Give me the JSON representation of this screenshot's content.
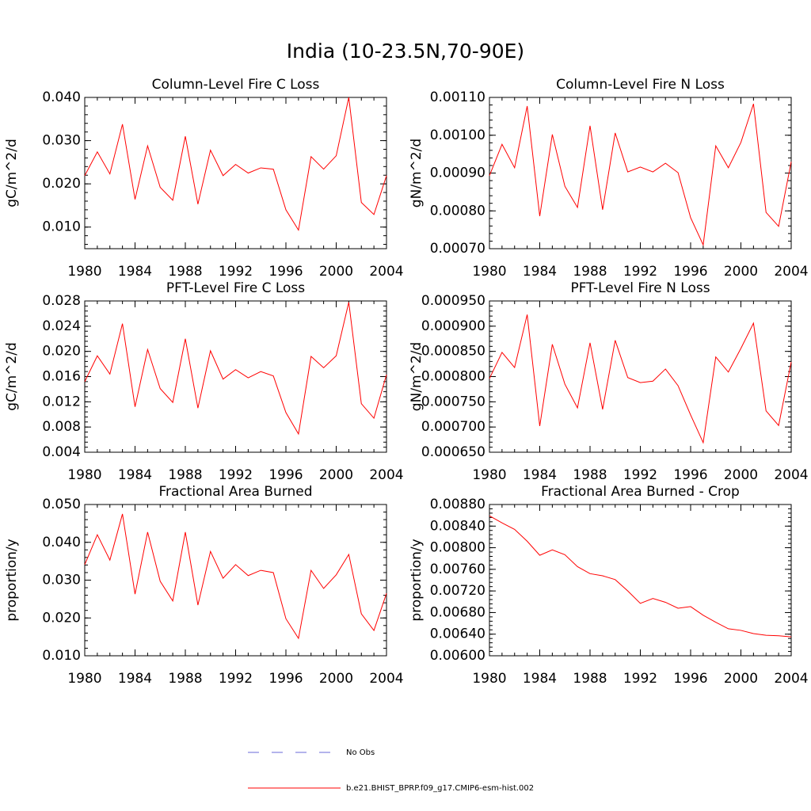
{
  "title": "India (10-23.5N,70-90E)",
  "legend": [
    {
      "name": "No Obs",
      "color": "#6a6ad8",
      "dash": true
    },
    {
      "name": "b.e21.BHIST_BPRP.f09_g17.CMIP6-esm-hist.002",
      "color": "#ff0000",
      "dash": false
    }
  ],
  "chart_data": [
    {
      "type": "line",
      "title": "Column-Level Fire C Loss",
      "ylabel": "gC/m^2/d",
      "color": "#ff0000",
      "x": [
        1980,
        1981,
        1982,
        1983,
        1984,
        1985,
        1986,
        1987,
        1988,
        1989,
        1990,
        1991,
        1992,
        1993,
        1994,
        1995,
        1996,
        1997,
        1998,
        1999,
        2000,
        2001,
        2002,
        2003,
        2004
      ],
      "values": [
        0.0219,
        0.0274,
        0.0223,
        0.0338,
        0.0164,
        0.0288,
        0.0192,
        0.0162,
        0.031,
        0.0153,
        0.0278,
        0.0219,
        0.0245,
        0.0225,
        0.0237,
        0.0234,
        0.014,
        0.0093,
        0.0263,
        0.0234,
        0.0265,
        0.04,
        0.0157,
        0.0129,
        0.0219
      ],
      "xlim": [
        1980,
        2004
      ],
      "xticks": [
        1980,
        1984,
        1988,
        1992,
        1996,
        2000,
        2004
      ],
      "ylim": [
        0.005,
        0.04
      ],
      "yticks": [
        {
          "value": 0.01,
          "label": "0.010"
        },
        {
          "value": 0.02,
          "label": "0.020"
        },
        {
          "value": 0.03,
          "label": "0.030"
        },
        {
          "value": 0.04,
          "label": "0.040"
        }
      ]
    },
    {
      "type": "line",
      "title": "Column-Level Fire N Loss",
      "ylabel": "gN/m^2/d",
      "color": "#ff0000",
      "x": [
        1980,
        1981,
        1982,
        1983,
        1984,
        1985,
        1986,
        1987,
        1988,
        1989,
        1990,
        1991,
        1992,
        1993,
        1994,
        1995,
        1996,
        1997,
        1998,
        1999,
        2000,
        2001,
        2002,
        2003,
        2004
      ],
      "values": [
        0.000893,
        0.000976,
        0.000914,
        0.001077,
        0.000786,
        0.001002,
        0.000865,
        0.000809,
        0.001025,
        0.000803,
        0.001006,
        0.000903,
        0.000916,
        0.000903,
        0.000926,
        0.000901,
        0.000782,
        0.00071,
        0.000972,
        0.000914,
        0.000981,
        0.001083,
        0.000796,
        0.000759,
        0.00093
      ],
      "xlim": [
        1980,
        2004
      ],
      "xticks": [
        1980,
        1984,
        1988,
        1992,
        1996,
        2000,
        2004
      ],
      "ylim": [
        0.0007,
        0.0011
      ],
      "yticks": [
        {
          "value": 0.0007,
          "label": "0.00070"
        },
        {
          "value": 0.0008,
          "label": "0.00080"
        },
        {
          "value": 0.0009,
          "label": "0.00090"
        },
        {
          "value": 0.001,
          "label": "0.00100"
        },
        {
          "value": 0.0011,
          "label": "0.00110"
        }
      ]
    },
    {
      "type": "line",
      "title": "PFT-Level Fire C Loss",
      "ylabel": "gC/m^2/d",
      "color": "#ff0000",
      "x": [
        1980,
        1981,
        1982,
        1983,
        1984,
        1985,
        1986,
        1987,
        1988,
        1989,
        1990,
        1991,
        1992,
        1993,
        1994,
        1995,
        1996,
        1997,
        1998,
        1999,
        2000,
        2001,
        2002,
        2003,
        2004
      ],
      "values": [
        0.0152,
        0.0193,
        0.0164,
        0.0244,
        0.0112,
        0.0203,
        0.0141,
        0.0119,
        0.022,
        0.011,
        0.0201,
        0.0156,
        0.0171,
        0.0158,
        0.0168,
        0.0161,
        0.0103,
        0.0069,
        0.0192,
        0.0174,
        0.0193,
        0.0278,
        0.0117,
        0.0094,
        0.0163
      ],
      "xlim": [
        1980,
        2004
      ],
      "xticks": [
        1980,
        1984,
        1988,
        1992,
        1996,
        2000,
        2004
      ],
      "ylim": [
        0.004,
        0.028
      ],
      "yticks": [
        0.004,
        0.008,
        0.012,
        0.016,
        {
          "value": 0.02,
          "label": "0.020"
        },
        0.024,
        0.028
      ]
    },
    {
      "type": "line",
      "title": "PFT-Level Fire N Loss",
      "ylabel": "gN/m^2/d",
      "color": "#ff0000",
      "x": [
        1980,
        1981,
        1982,
        1983,
        1984,
        1985,
        1986,
        1987,
        1988,
        1989,
        1990,
        1991,
        1992,
        1993,
        1994,
        1995,
        1996,
        1997,
        1998,
        1999,
        2000,
        2001,
        2002,
        2003,
        2004
      ],
      "values": [
        0.000796,
        0.000848,
        0.000818,
        0.000923,
        0.000702,
        0.000864,
        0.000785,
        0.000738,
        0.000867,
        0.000735,
        0.000872,
        0.000798,
        0.000788,
        0.000791,
        0.000815,
        0.000782,
        0.000724,
        0.000669,
        0.000839,
        0.000809,
        0.000856,
        0.000906,
        0.000732,
        0.000703,
        0.000829
      ],
      "xlim": [
        1980,
        2004
      ],
      "xticks": [
        1980,
        1984,
        1988,
        1992,
        1996,
        2000,
        2004
      ],
      "ylim": [
        0.00065,
        0.00095
      ],
      "yticks": [
        {
          "value": 0.00065,
          "label": "0.000650"
        },
        {
          "value": 0.0007,
          "label": "0.000700"
        },
        {
          "value": 0.00075,
          "label": "0.000750"
        },
        {
          "value": 0.0008,
          "label": "0.000800"
        },
        {
          "value": 0.00085,
          "label": "0.000850"
        },
        {
          "value": 0.0009,
          "label": "0.000900"
        },
        {
          "value": 0.00095,
          "label": "0.000950"
        }
      ]
    },
    {
      "type": "line",
      "title": "Fractional Area Burned",
      "ylabel": "proportion/y",
      "color": "#ff0000",
      "x": [
        1980,
        1981,
        1982,
        1983,
        1984,
        1985,
        1986,
        1987,
        1988,
        1989,
        1990,
        1991,
        1992,
        1993,
        1994,
        1995,
        1996,
        1997,
        1998,
        1999,
        2000,
        2001,
        2002,
        2003,
        2004
      ],
      "values": [
        0.0341,
        0.042,
        0.0353,
        0.0475,
        0.0263,
        0.0427,
        0.0297,
        0.0245,
        0.0427,
        0.0234,
        0.0376,
        0.0305,
        0.0341,
        0.0312,
        0.0326,
        0.032,
        0.0198,
        0.0146,
        0.0326,
        0.0278,
        0.0314,
        0.0368,
        0.0211,
        0.0167,
        0.0265
      ],
      "xlim": [
        1980,
        2004
      ],
      "xticks": [
        1980,
        1984,
        1988,
        1992,
        1996,
        2000,
        2004
      ],
      "ylim": [
        0.01,
        0.05
      ],
      "yticks": [
        {
          "value": 0.01,
          "label": "0.010"
        },
        {
          "value": 0.02,
          "label": "0.020"
        },
        {
          "value": 0.03,
          "label": "0.030"
        },
        {
          "value": 0.04,
          "label": "0.040"
        },
        {
          "value": 0.05,
          "label": "0.050"
        }
      ]
    },
    {
      "type": "line",
      "title": "Fractional Area Burned - Crop",
      "ylabel": "proportion/y",
      "color": "#ff0000",
      "x": [
        1980,
        1981,
        1982,
        1983,
        1984,
        1985,
        1986,
        1987,
        1988,
        1989,
        1990,
        1991,
        1992,
        1993,
        1994,
        1995,
        1996,
        1997,
        1998,
        1999,
        2000,
        2001,
        2002,
        2003,
        2004
      ],
      "values": [
        0.00859,
        0.00846,
        0.00834,
        0.00812,
        0.00786,
        0.00796,
        0.00787,
        0.00765,
        0.00752,
        0.00748,
        0.00741,
        0.0072,
        0.00697,
        0.00706,
        0.00699,
        0.00688,
        0.00691,
        0.00675,
        0.00662,
        0.0065,
        0.00647,
        0.00641,
        0.00638,
        0.00637,
        0.00635
      ],
      "xlim": [
        1980,
        2004
      ],
      "xticks": [
        1980,
        1984,
        1988,
        1992,
        1996,
        2000,
        2004
      ],
      "ylim": [
        0.006,
        0.0088
      ],
      "yticks": [
        {
          "value": 0.006,
          "label": "0.00600"
        },
        {
          "value": 0.0064,
          "label": "0.00640"
        },
        {
          "value": 0.0068,
          "label": "0.00680"
        },
        {
          "value": 0.0072,
          "label": "0.00720"
        },
        {
          "value": 0.0076,
          "label": "0.00760"
        },
        {
          "value": 0.008,
          "label": "0.00800"
        },
        {
          "value": 0.0084,
          "label": "0.00840"
        },
        {
          "value": 0.0088,
          "label": "0.00880"
        }
      ]
    }
  ]
}
